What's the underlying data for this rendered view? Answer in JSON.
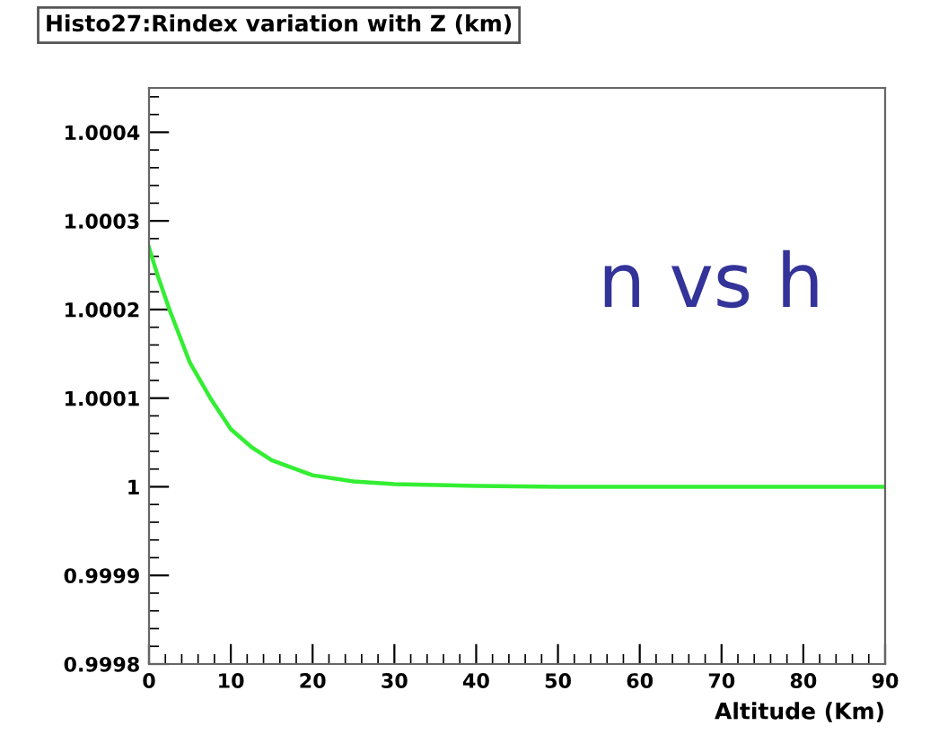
{
  "chart_data": {
    "type": "line",
    "title": "Histo27:Rindex variation with Z (km)",
    "xlabel": "Altitude (Km)",
    "x": [
      0,
      1,
      2.5,
      5,
      7.5,
      10,
      12.5,
      15,
      20,
      25,
      30,
      40,
      50,
      60,
      70,
      80,
      90
    ],
    "series": [
      {
        "color": "#33ee33",
        "values": [
          1.00027,
          1.00024,
          1.0002,
          1.00014,
          1.0001,
          1.000065,
          1.000045,
          1.00003,
          1.000013,
          1.000006,
          1.000003,
          1.000001,
          1.0,
          1.0,
          1.0,
          1.0,
          1.0
        ]
      }
    ],
    "xlim": [
      0,
      90
    ],
    "xticks": [
      0,
      10,
      20,
      30,
      40,
      50,
      60,
      70,
      80,
      90
    ],
    "ylim": [
      0.9998,
      1.00045
    ],
    "yticks": [
      0.9998,
      0.9999,
      {
        "value": 1,
        "label": "1"
      },
      1.0001,
      1.0002,
      1.0003,
      1.0004
    ],
    "annotations": [
      "n vs h"
    ],
    "grid": false,
    "legend": false,
    "marker": "none",
    "line_style": "solid"
  }
}
